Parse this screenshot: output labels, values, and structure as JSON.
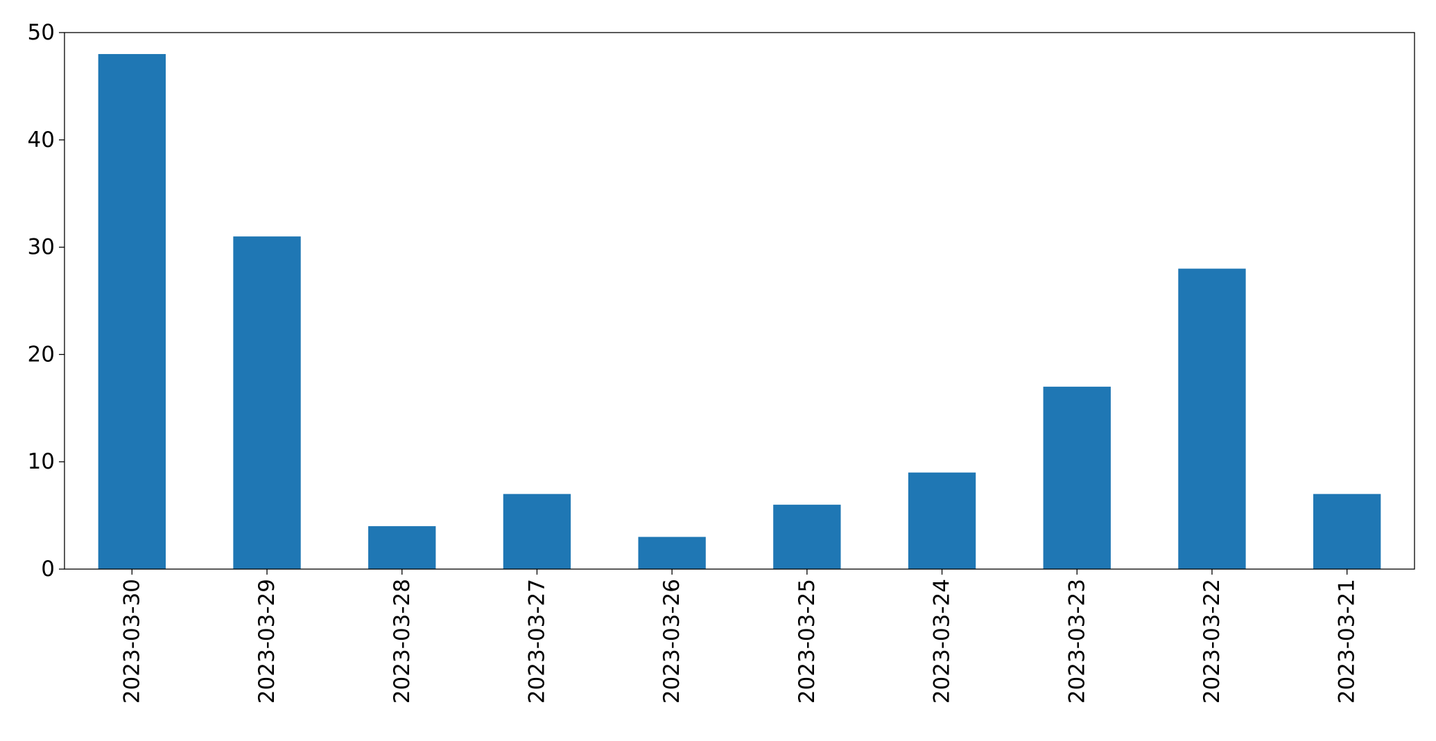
{
  "chart_data": {
    "type": "bar",
    "categories": [
      "2023-03-30",
      "2023-03-29",
      "2023-03-28",
      "2023-03-27",
      "2023-03-26",
      "2023-03-25",
      "2023-03-24",
      "2023-03-23",
      "2023-03-22",
      "2023-03-21"
    ],
    "values": [
      48,
      31,
      4,
      7,
      3,
      6,
      9,
      17,
      28,
      7
    ],
    "title": "",
    "xlabel": "",
    "ylabel": "",
    "ylim": [
      0,
      50
    ],
    "yticks": [
      0,
      10,
      20,
      30,
      40,
      50
    ],
    "grid": false,
    "legend": "none",
    "bar_color": "#1f77b4",
    "axis_color": "#000000"
  }
}
